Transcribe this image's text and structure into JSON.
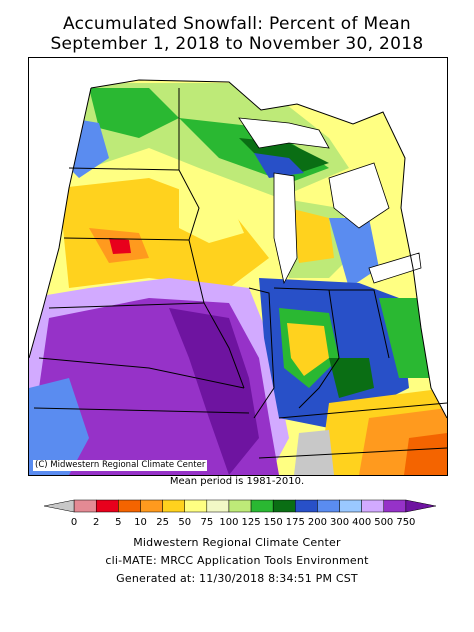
{
  "title": {
    "line1": "Accumulated Snowfall: Percent of Mean",
    "line2": "September 1, 2018 to November 30, 2018"
  },
  "map": {
    "credit": "(C) Midwestern Regional Climate Center",
    "mean_period": "Mean period is 1981-2010."
  },
  "legend": {
    "labels": [
      "0",
      "2",
      "5",
      "10",
      "25",
      "50",
      "75",
      "100",
      "125",
      "150",
      "175",
      "200",
      "300",
      "400",
      "500",
      "750"
    ],
    "colors": [
      "#c8c8c8",
      "#e48a94",
      "#e8001c",
      "#f46400",
      "#ff9a1e",
      "#ffd21e",
      "#ffff82",
      "#f2f8c6",
      "#beea78",
      "#2ab832",
      "#0a6e14",
      "#2850c8",
      "#5a8cf0",
      "#9ac8ff",
      "#d2aaff",
      "#9632c8",
      "#6e14a0"
    ]
  },
  "footer": {
    "line1": "Midwestern Regional Climate Center",
    "line2": "cli-MATE: MRCC Application Tools Environment",
    "line3": "Generated at: 11/30/2018 8:34:51 PM CST"
  }
}
